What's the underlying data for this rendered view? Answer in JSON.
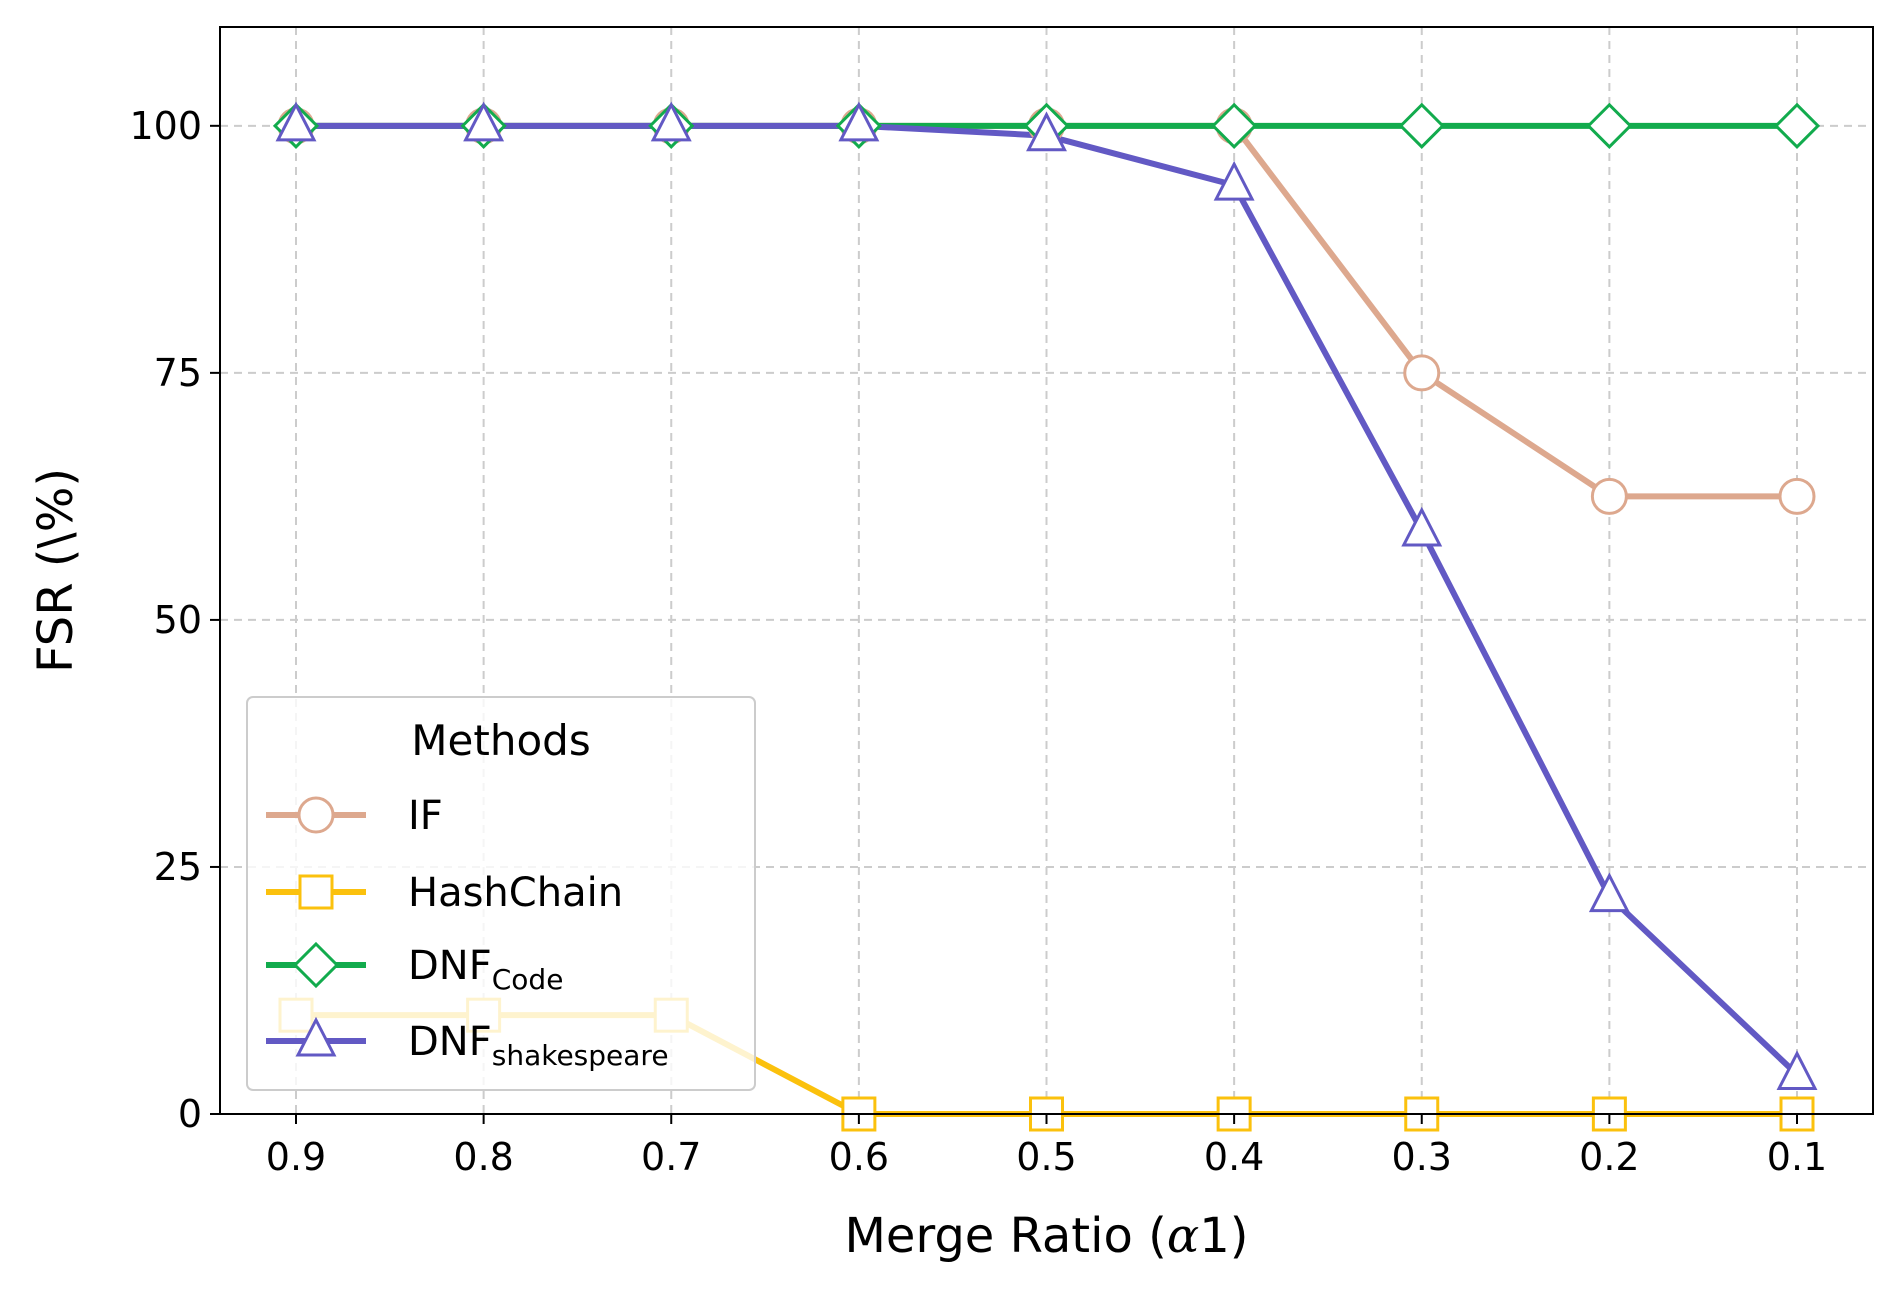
{
  "chart_data": {
    "type": "line",
    "title": "",
    "xlabel_main": "Merge Ratio (",
    "xlabel_symbol": "α",
    "xlabel_tail": "1)",
    "ylabel": "FSR (\\%)",
    "x": [
      0.9,
      0.8,
      0.7,
      0.6,
      0.5,
      0.4,
      0.3,
      0.2,
      0.1
    ],
    "x_tick_labels": [
      "0.9",
      "0.8",
      "0.7",
      "0.6",
      "0.5",
      "0.4",
      "0.3",
      "0.2",
      "0.1"
    ],
    "x_reversed": true,
    "ylim": [
      0,
      110
    ],
    "y_ticks": [
      0,
      25,
      50,
      75,
      100
    ],
    "y_tick_labels": [
      "0",
      "25",
      "50",
      "75",
      "100"
    ],
    "grid": true,
    "legend_title": "Methods",
    "legend_position": "lower-left",
    "series": [
      {
        "key": "if",
        "name": "IF",
        "name_sub": "",
        "marker": "circle",
        "color": "#DDA88E",
        "values": [
          100,
          100,
          100,
          100,
          100,
          100,
          75,
          62.5,
          62.5
        ]
      },
      {
        "key": "hashchain",
        "name": "HashChain",
        "name_sub": "",
        "marker": "square",
        "color": "#FBC10D",
        "values": [
          10,
          10,
          10,
          0,
          0,
          0,
          0,
          0,
          0
        ]
      },
      {
        "key": "dnf-code",
        "name": "DNF",
        "name_sub": "Code",
        "marker": "diamond",
        "color": "#12AB4D",
        "values": [
          100,
          100,
          100,
          100,
          100,
          100,
          100,
          100,
          100
        ]
      },
      {
        "key": "dnf-shakespeare",
        "name": "DNF",
        "name_sub": "shakespeare",
        "marker": "triangle",
        "color": "#6259C4",
        "values": [
          100,
          100,
          100,
          100,
          99,
          94,
          59,
          22,
          4
        ]
      }
    ]
  }
}
